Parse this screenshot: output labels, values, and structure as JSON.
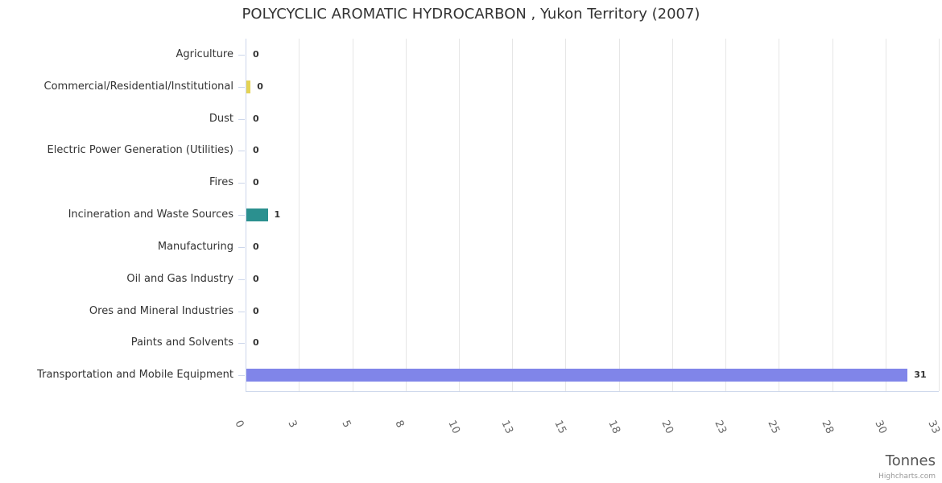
{
  "chart_data": {
    "type": "bar",
    "orientation": "horizontal",
    "title": "POLYCYCLIC AROMATIC HYDROCARBON , Yukon Territory (2007)",
    "xlabel": "Tonnes",
    "ylabel": "",
    "categories": [
      "Agriculture",
      "Commercial/Residential/Institutional",
      "Dust",
      "Electric Power Generation (Utilities)",
      "Fires",
      "Incineration and Waste Sources",
      "Manufacturing",
      "Oil and Gas Industry",
      "Ores and Mineral Industries",
      "Paints and Solvents",
      "Transportation and Mobile Equipment"
    ],
    "values": [
      0,
      0.2,
      0,
      0,
      0,
      1,
      0,
      0,
      0,
      0,
      31
    ],
    "value_labels": [
      "0",
      "0",
      "0",
      "0",
      "0",
      "1",
      "0",
      "0",
      "0",
      "0",
      "31"
    ],
    "bar_colors": [
      "#7cb5ec",
      "#e4d354",
      "#90ed7d",
      "#f7a35c",
      "#f15c80",
      "#2b908f",
      "#434348",
      "#f45b5b",
      "#91e8e1",
      "#7cb5ec",
      "#8085e9"
    ],
    "xlim": [
      0,
      32.5
    ],
    "xticks": {
      "values": [
        0,
        2.5,
        5,
        7.5,
        10,
        12.5,
        15,
        17.5,
        20,
        22.5,
        25,
        27.5,
        30,
        32.5
      ],
      "labels": [
        "0",
        "3",
        "5",
        "8",
        "10",
        "13",
        "15",
        "18",
        "20",
        "23",
        "25",
        "28",
        "30",
        "33"
      ]
    },
    "grid": true,
    "legend": false,
    "credit": "Highcharts.com"
  }
}
